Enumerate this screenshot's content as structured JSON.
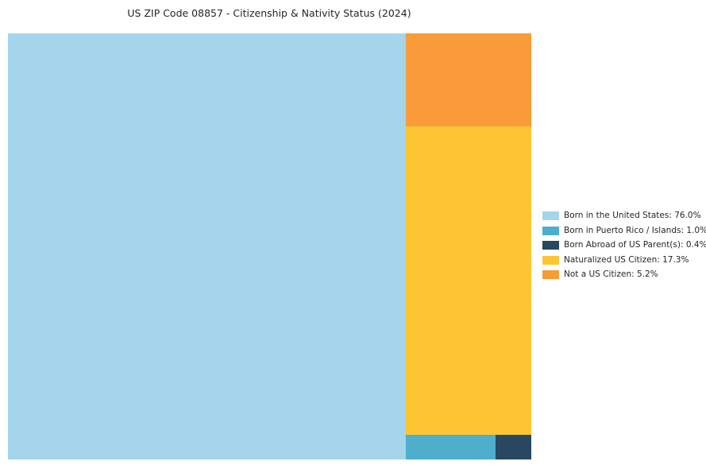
{
  "chart_data": {
    "type": "treemap",
    "title": "US ZIP Code 08857 - Citizenship & Nativity Status (2024)",
    "legend_position": "right",
    "items": [
      {
        "label": "Born in the United States",
        "value": 76.0,
        "unit": "%",
        "color": "#A5D5EA",
        "legend_label": "Born in the United States: 76.0%"
      },
      {
        "label": "Born in Puerto Rico / Islands",
        "value": 1.0,
        "unit": "%",
        "color": "#4EAECC",
        "legend_label": "Born in Puerto Rico / Islands: 1.0%"
      },
      {
        "label": "Born Abroad of US Parent(s)",
        "value": 0.4,
        "unit": "%",
        "color": "#27485F",
        "legend_label": "Born Abroad of US Parent(s): 0.4%"
      },
      {
        "label": "Naturalized US Citizen",
        "value": 17.3,
        "unit": "%",
        "color": "#FDC532",
        "legend_label": "Naturalized US Citizen: 17.3%"
      },
      {
        "label": "Not a US Citizen",
        "value": 5.2,
        "unit": "%",
        "color": "#F89B38",
        "legend_label": "Not a US Citizen: 5.2%"
      }
    ]
  }
}
